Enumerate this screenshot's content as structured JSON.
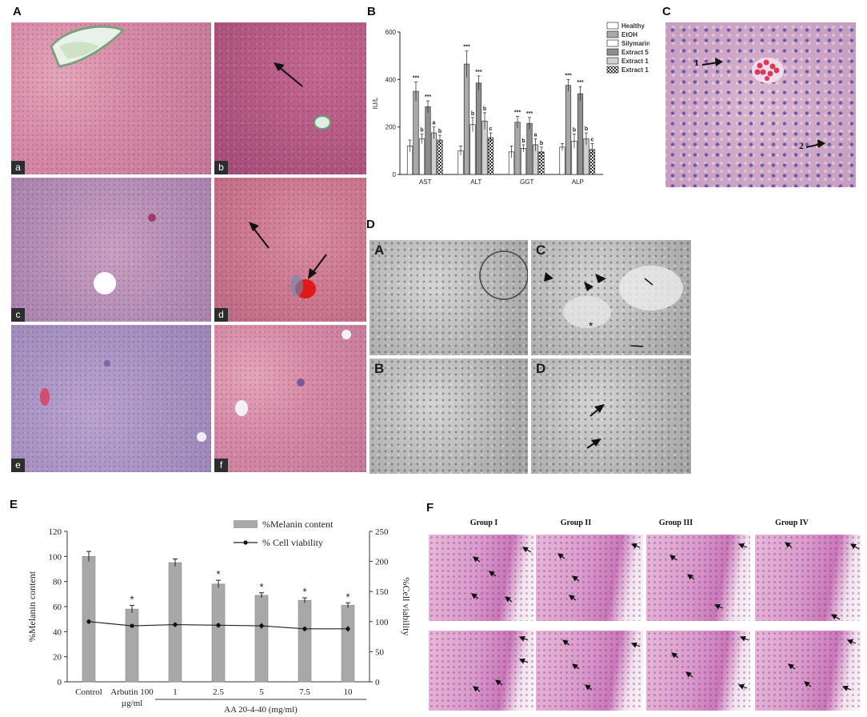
{
  "panels": {
    "A": {
      "letter": "A",
      "tiles": [
        "a",
        "b",
        "c",
        "d",
        "e",
        "f"
      ]
    },
    "B": {
      "letter": "B"
    },
    "C": {
      "letter": "C",
      "arrow_labels": [
        "1",
        "2"
      ]
    },
    "D": {
      "letter": "D",
      "tiles": [
        "A",
        "C",
        "B",
        "D"
      ]
    },
    "E": {
      "letter": "E"
    },
    "F": {
      "letter": "F",
      "groups": [
        "Group I",
        "Group II",
        "Group III",
        "Group IV"
      ]
    }
  },
  "chart_data": [
    {
      "id": "B",
      "type": "bar",
      "categories": [
        "AST",
        "ALT",
        "GGT",
        "ALP"
      ],
      "ylabel": "IU/L",
      "ylim": [
        0,
        600
      ],
      "yticks": [
        0,
        200,
        400,
        600
      ],
      "legend_position": "top-right",
      "series": [
        {
          "name": "Healthy",
          "values": [
            120,
            100,
            95,
            115
          ],
          "errors": [
            25,
            20,
            25,
            15
          ],
          "labels": [
            "",
            "",
            "",
            ""
          ],
          "fill": "#ffffff"
        },
        {
          "name": "EtOH",
          "values": [
            350,
            465,
            220,
            375
          ],
          "errors": [
            40,
            55,
            25,
            25
          ],
          "labels": [
            "***",
            "***",
            "***",
            "***"
          ],
          "fill": "#a9a9a9"
        },
        {
          "name": "Silymarin",
          "values": [
            150,
            210,
            110,
            140
          ],
          "errors": [
            20,
            30,
            15,
            30
          ],
          "labels": [
            "b",
            "b",
            "b",
            "b"
          ],
          "fill": "#ffffff"
        },
        {
          "name": "Extract 5",
          "values": [
            285,
            385,
            215,
            340
          ],
          "errors": [
            25,
            30,
            25,
            30
          ],
          "labels": [
            "***",
            "***",
            "***",
            "***"
          ],
          "fill": "#8f8f8f"
        },
        {
          "name": "Extract 1",
          "values": [
            175,
            225,
            125,
            150
          ],
          "errors": [
            25,
            35,
            25,
            25
          ],
          "labels": [
            "a",
            "b",
            "a",
            "b"
          ],
          "fill": "#d0d0d0"
        },
        {
          "name": "Extract 1",
          "values": [
            145,
            155,
            95,
            105
          ],
          "errors": [
            20,
            20,
            20,
            25
          ],
          "labels": [
            "b",
            "c",
            "b",
            "c"
          ],
          "fill": "checker"
        }
      ]
    },
    {
      "id": "E",
      "type": "bar",
      "categories": [
        "Control",
        "Arbutin 100 µg/ml",
        "1",
        "2.5",
        "5",
        "7.5",
        "10"
      ],
      "group_label": "AA 20-4-40 (mg/ml)",
      "ylabel": "%Melanin content",
      "y2label": "%Cell viability",
      "ylim": [
        0,
        120
      ],
      "yticks": [
        0,
        20,
        40,
        60,
        80,
        100,
        120
      ],
      "y2lim": [
        0,
        250
      ],
      "y2ticks": [
        0,
        50,
        100,
        150,
        200,
        250
      ],
      "legend_position": "top-right",
      "series": [
        {
          "name": "%Melanin content",
          "type": "bar",
          "values": [
            100,
            58,
            95,
            78,
            69,
            65,
            61
          ],
          "errors": [
            4,
            3,
            3,
            3,
            2,
            2,
            2
          ],
          "labels": [
            "",
            "*",
            "",
            "*",
            "*",
            "*",
            "*"
          ]
        },
        {
          "name": "% Cell viability",
          "type": "line",
          "axis": "y2",
          "values": [
            100,
            93,
            95,
            94,
            93,
            88,
            88
          ],
          "errors": [
            4,
            2,
            4,
            4,
            5,
            4,
            5
          ]
        }
      ]
    }
  ]
}
